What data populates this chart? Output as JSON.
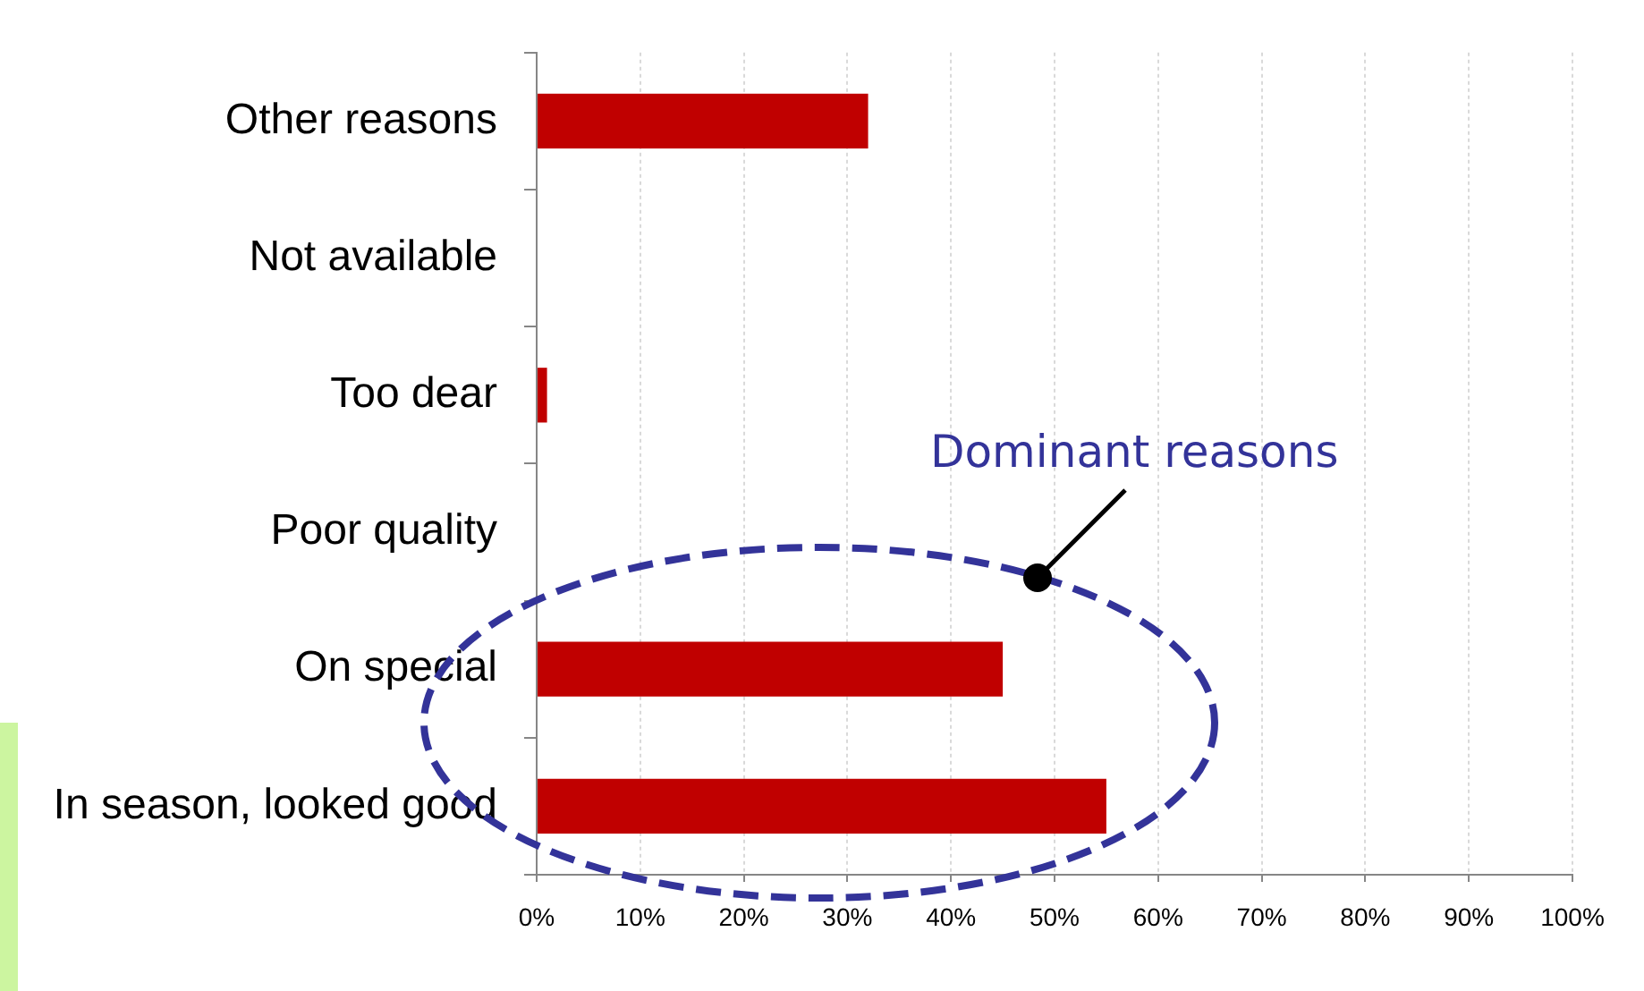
{
  "chart_data": {
    "type": "bar",
    "orientation": "horizontal",
    "categories": [
      "Other reasons",
      "Not available",
      "Too dear",
      "Poor quality",
      "On special",
      "In season, looked good"
    ],
    "values": [
      32,
      0,
      1,
      0,
      45,
      55
    ],
    "color": "#c00000",
    "xlim": [
      0,
      100
    ],
    "xticks": [
      {
        "value": 0,
        "label": "0%"
      },
      {
        "value": 10,
        "label": "10%"
      },
      {
        "value": 20,
        "label": "20%"
      },
      {
        "value": 30,
        "label": "30%"
      },
      {
        "value": 40,
        "label": "40%"
      },
      {
        "value": 50,
        "label": "50%"
      },
      {
        "value": 60,
        "label": "60%"
      },
      {
        "value": 70,
        "label": "70%"
      },
      {
        "value": 80,
        "label": "80%"
      },
      {
        "value": 90,
        "label": "90%"
      },
      {
        "value": 100,
        "label": "100%"
      }
    ],
    "grid": "x",
    "annotations": [
      "Dominant reasons"
    ]
  }
}
